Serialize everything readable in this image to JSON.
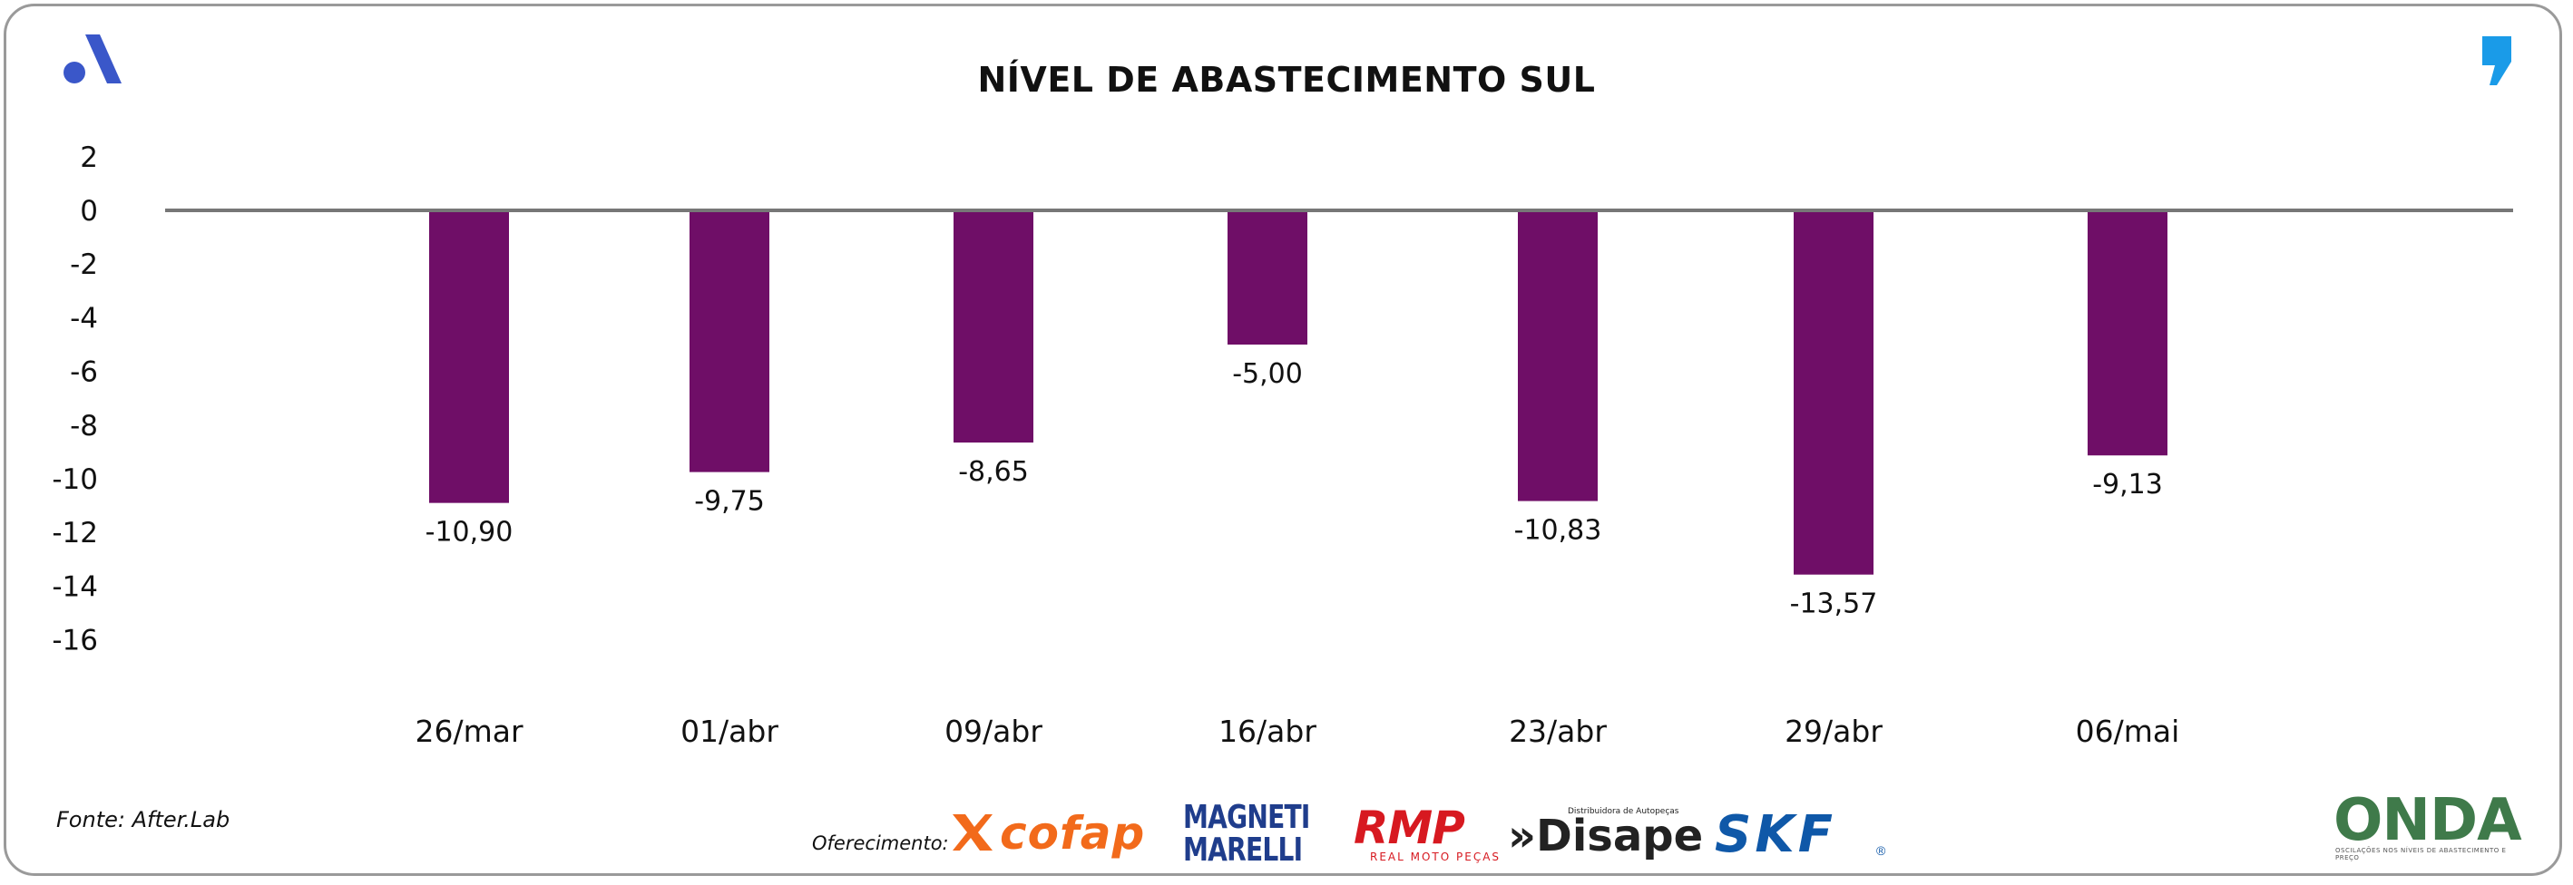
{
  "header": {
    "title": "NÍVEL DE ABASTECIMENTO SUL",
    "left_logo_icon": "after-lab-logo-icon",
    "right_logo_icon": "quote-mark-icon"
  },
  "colors": {
    "bar": "#6f0e67",
    "axis_line": "#777777",
    "frame": "#9a9a9a",
    "left_logo": "#3a57c9",
    "right_logo": "#1a9be8"
  },
  "chart_data": {
    "type": "bar",
    "title": "NÍVEL DE ABASTECIMENTO SUL",
    "xlabel": "",
    "ylabel": "",
    "categories": [
      "26/mar",
      "01/abr",
      "09/abr",
      "16/abr",
      "23/abr",
      "29/abr",
      "06/mai"
    ],
    "values": [
      -10.9,
      -9.75,
      -8.65,
      -5.0,
      -10.83,
      -13.57,
      -9.13
    ],
    "value_labels": [
      "-10,90",
      "-9,75",
      "-8,65",
      "-5,00",
      "-10,83",
      "-13,57",
      "-9,13"
    ],
    "ylim": [
      -16,
      2
    ],
    "yticks": [
      2,
      0,
      -2,
      -4,
      -6,
      -8,
      -10,
      -12,
      -14,
      -16
    ],
    "grid": false,
    "legend": "none"
  },
  "footer": {
    "source": "Fonte: After.Lab",
    "sponsor_label": "Oferecimento:",
    "sponsors": {
      "cofap": "cofap",
      "magneti_marelli": "MAGNETI MARELLI",
      "rmp": "RMP",
      "rmp_sub": "REAL MOTO PEÇAS",
      "disape": "»Disape",
      "disape_sub": "Distribuidora de Autopeças",
      "skf": "SKF",
      "skf_reg": "®",
      "onda": "ONDA",
      "onda_sub": "OSCILAÇÕES NOS NÍVEIS DE ABASTECIMENTO E PREÇO"
    }
  }
}
